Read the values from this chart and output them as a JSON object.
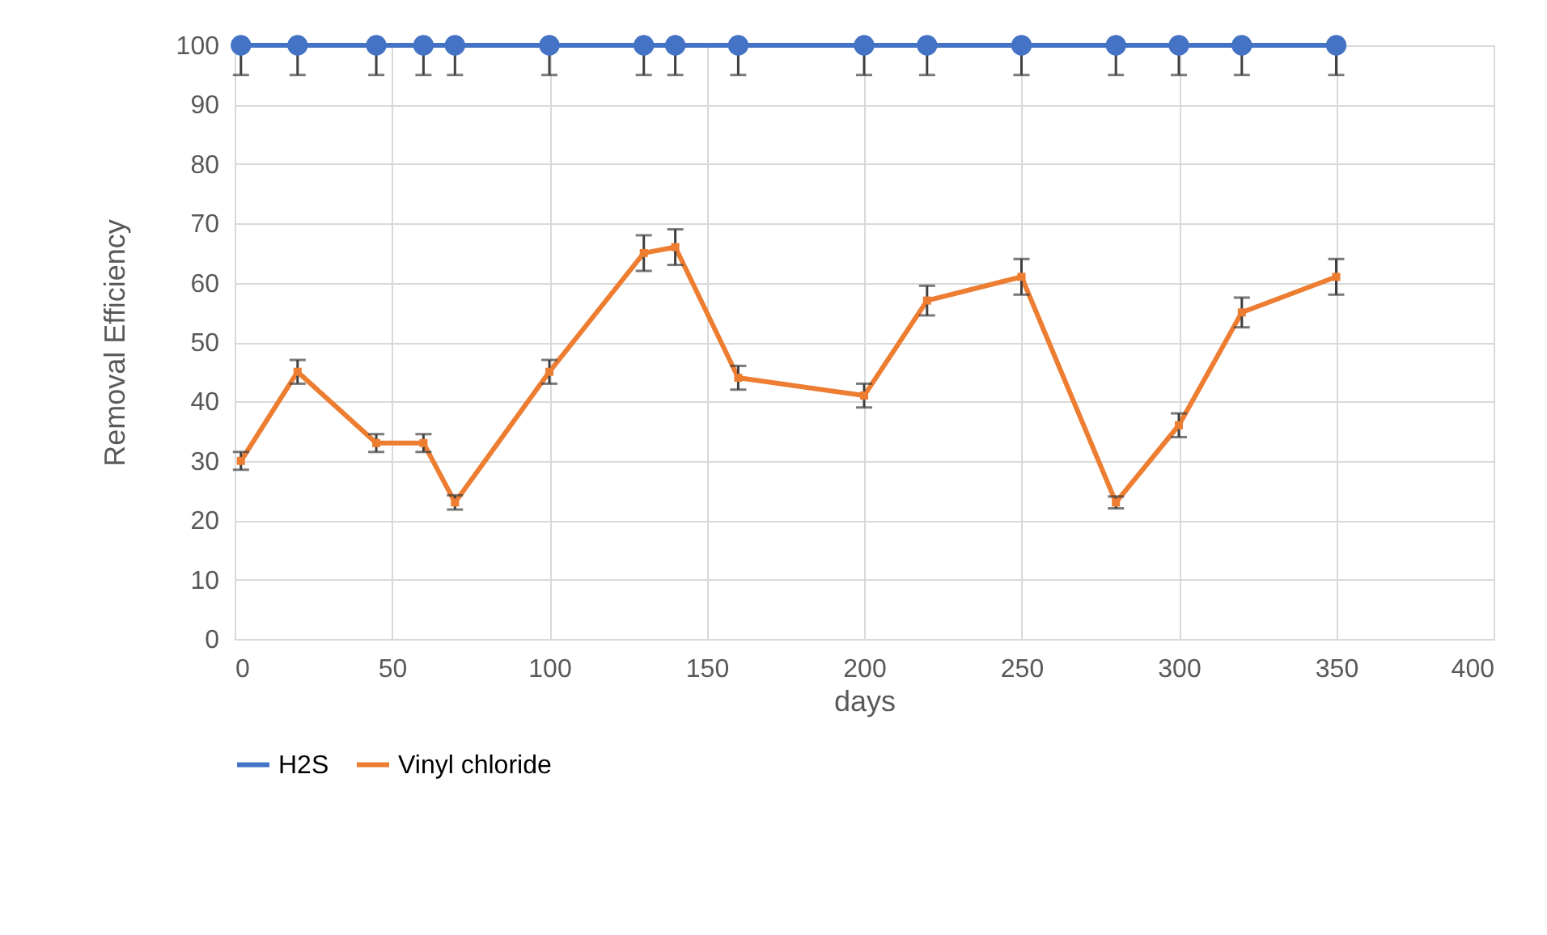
{
  "chart_data": {
    "type": "line",
    "xlabel": "days",
    "ylabel": "Removal Efficiency",
    "x": [
      2,
      20,
      45,
      60,
      70,
      100,
      130,
      140,
      160,
      200,
      220,
      250,
      280,
      300,
      320,
      350
    ],
    "series": [
      {
        "name": "H2S",
        "color": "#4472c4",
        "marker": "circle",
        "values": [
          100,
          100,
          100,
          100,
          100,
          100,
          100,
          100,
          100,
          100,
          100,
          100,
          100,
          100,
          100,
          100
        ],
        "errors": [
          [
            95,
            100
          ],
          [
            95,
            100
          ],
          [
            95,
            100
          ],
          [
            95,
            100
          ],
          [
            95,
            100
          ],
          [
            95,
            100
          ],
          [
            95,
            100
          ],
          [
            95,
            100
          ],
          [
            95,
            100
          ],
          [
            95,
            100
          ],
          [
            95,
            100
          ],
          [
            95,
            100
          ],
          [
            95,
            100
          ],
          [
            95,
            100
          ],
          [
            95,
            100
          ],
          [
            95,
            100
          ]
        ]
      },
      {
        "name": "Vinyl chloride",
        "color": "#ed7d31",
        "marker": "square",
        "values": [
          30,
          45,
          33,
          33,
          23,
          45,
          65,
          66,
          44,
          41,
          57,
          61,
          23,
          36,
          55,
          61
        ],
        "errors": [
          1.5,
          2,
          1.5,
          1.5,
          1.2,
          2,
          3,
          3,
          2,
          2,
          2.5,
          3,
          1,
          2,
          2.5,
          3
        ]
      }
    ],
    "xlim": [
      0,
      400
    ],
    "xticks": [
      0,
      50,
      100,
      150,
      200,
      250,
      300,
      350,
      400
    ],
    "ylim": [
      0,
      100
    ],
    "yticks": [
      0,
      10,
      20,
      30,
      40,
      50,
      60,
      70,
      80,
      90,
      100
    ],
    "grid": true,
    "legend": "bottom",
    "line_style": "solid"
  }
}
